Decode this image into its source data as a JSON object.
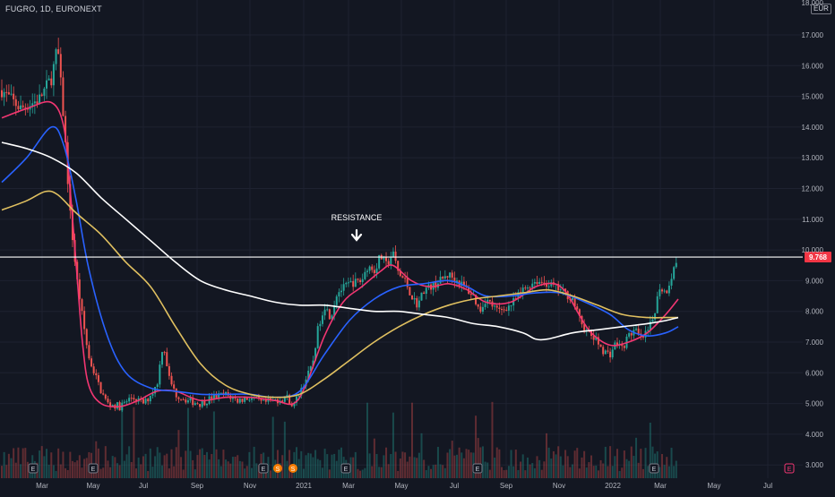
{
  "header": {
    "symbol": "FUGRO, 1D, EURONEXT",
    "currency": "EUR"
  },
  "annotation": {
    "label": "RESISTANCE"
  },
  "colors": {
    "background": "#131722",
    "grid": "#1e2230",
    "axis_text": "#b2b5be",
    "resistance_line": "#ffffff",
    "price_badge": "#f23645",
    "candle_up": "#26a69a",
    "candle_down": "#ef5350",
    "ma_red": "#f23672",
    "ma_blue": "#2962ff",
    "ma_yellow": "#e0c060",
    "ma_white": "#ffffff"
  },
  "chart_data": {
    "type": "candlestick",
    "title": "FUGRO, 1D, EURONEXT",
    "ylim": [
      2.8,
      18.0
    ],
    "y_ticks": [
      "17.000",
      "16.000",
      "15.000",
      "14.000",
      "13.000",
      "12.000",
      "11.000",
      "10.000",
      "9.000",
      "8.000",
      "7.000",
      "6.000",
      "5.000",
      "4.000",
      "3.000"
    ],
    "x_labels": [
      "Mar",
      "May",
      "Jul",
      "Sep",
      "Nov",
      "2021",
      "Mar",
      "May",
      "Jul",
      "Sep",
      "Nov",
      "2022",
      "Mar",
      "May",
      "Jul"
    ],
    "last_price": "9.768",
    "resistance_level": 9.768,
    "price_path": [
      [
        0,
        15.2
      ],
      [
        3,
        14.6
      ],
      [
        6,
        14.9
      ],
      [
        8,
        15.6
      ],
      [
        9,
        16.6
      ],
      [
        10,
        14.2
      ],
      [
        11,
        11.2
      ],
      [
        12,
        9.2
      ],
      [
        13,
        7.8
      ],
      [
        14,
        6.5
      ],
      [
        16,
        5.4
      ],
      [
        17,
        5.0
      ],
      [
        19,
        4.9
      ],
      [
        21,
        5.2
      ],
      [
        23,
        5.0
      ],
      [
        25,
        5.6
      ],
      [
        26,
        7.0
      ],
      [
        27,
        5.8
      ],
      [
        28,
        5.3
      ],
      [
        30,
        5.1
      ],
      [
        32,
        5.0
      ],
      [
        34,
        5.2
      ],
      [
        36,
        5.3
      ],
      [
        38,
        5.1
      ],
      [
        40,
        5.2
      ],
      [
        42,
        5.0
      ],
      [
        44,
        5.1
      ],
      [
        46,
        5.2
      ],
      [
        47,
        4.9
      ],
      [
        48,
        5.4
      ],
      [
        50,
        6.2
      ],
      [
        51,
        7.5
      ],
      [
        52,
        8.2
      ],
      [
        53,
        7.8
      ],
      [
        54,
        8.6
      ],
      [
        56,
        8.9
      ],
      [
        58,
        9.0
      ],
      [
        59,
        9.5
      ],
      [
        60,
        9.3
      ],
      [
        61,
        9.8
      ],
      [
        62,
        9.5
      ],
      [
        63,
        9.9
      ],
      [
        64,
        9.2
      ],
      [
        65,
        9.0
      ],
      [
        66,
        8.5
      ],
      [
        67,
        8.2
      ],
      [
        68,
        8.7
      ],
      [
        70,
        8.9
      ],
      [
        72,
        9.2
      ],
      [
        74,
        8.9
      ],
      [
        76,
        8.5
      ],
      [
        77,
        8.0
      ],
      [
        78,
        8.4
      ],
      [
        80,
        8.0
      ],
      [
        82,
        8.2
      ],
      [
        84,
        8.7
      ],
      [
        86,
        9.0
      ],
      [
        88,
        8.9
      ],
      [
        90,
        8.7
      ],
      [
        92,
        8.4
      ],
      [
        93,
        7.8
      ],
      [
        94,
        7.4
      ],
      [
        95,
        7.2
      ],
      [
        96,
        7.0
      ],
      [
        97,
        6.7
      ],
      [
        98,
        6.6
      ],
      [
        99,
        7.0
      ],
      [
        100,
        6.8
      ],
      [
        101,
        7.2
      ],
      [
        102,
        7.4
      ],
      [
        103,
        7.1
      ],
      [
        104,
        7.3
      ],
      [
        105,
        7.8
      ],
      [
        106,
        8.8
      ],
      [
        107,
        8.6
      ],
      [
        108,
        9.2
      ],
      [
        109,
        9.8
      ]
    ],
    "series": [
      {
        "name": "",
        "color": "#f23672",
        "points": [
          [
            0,
            14.3
          ],
          [
            4,
            14.6
          ],
          [
            8,
            14.8
          ],
          [
            10,
            14.0
          ],
          [
            11,
            12.0
          ],
          [
            12,
            9.5
          ],
          [
            13,
            7.0
          ],
          [
            14,
            5.6
          ],
          [
            16,
            5.0
          ],
          [
            19,
            4.9
          ],
          [
            22,
            5.1
          ],
          [
            25,
            5.4
          ],
          [
            28,
            5.4
          ],
          [
            32,
            5.1
          ],
          [
            36,
            5.2
          ],
          [
            40,
            5.2
          ],
          [
            44,
            5.1
          ],
          [
            47,
            5.0
          ],
          [
            49,
            5.6
          ],
          [
            52,
            7.2
          ],
          [
            55,
            8.3
          ],
          [
            58,
            8.8
          ],
          [
            61,
            9.3
          ],
          [
            63,
            9.5
          ],
          [
            66,
            9.0
          ],
          [
            69,
            8.8
          ],
          [
            72,
            8.9
          ],
          [
            75,
            8.7
          ],
          [
            78,
            8.3
          ],
          [
            82,
            8.3
          ],
          [
            86,
            8.8
          ],
          [
            89,
            8.9
          ],
          [
            91,
            8.6
          ],
          [
            93,
            7.9
          ],
          [
            95,
            7.3
          ],
          [
            98,
            6.9
          ],
          [
            101,
            7.0
          ],
          [
            104,
            7.3
          ],
          [
            107,
            7.9
          ],
          [
            109,
            8.4
          ]
        ]
      },
      {
        "name": "",
        "color": "#2962ff",
        "points": [
          [
            0,
            12.2
          ],
          [
            4,
            13.0
          ],
          [
            8,
            14.0
          ],
          [
            10,
            13.4
          ],
          [
            12,
            11.6
          ],
          [
            14,
            9.4
          ],
          [
            17,
            7.2
          ],
          [
            20,
            6.0
          ],
          [
            24,
            5.5
          ],
          [
            28,
            5.4
          ],
          [
            32,
            5.3
          ],
          [
            36,
            5.3
          ],
          [
            40,
            5.3
          ],
          [
            44,
            5.2
          ],
          [
            48,
            5.4
          ],
          [
            52,
            6.6
          ],
          [
            56,
            7.7
          ],
          [
            60,
            8.4
          ],
          [
            64,
            8.8
          ],
          [
            68,
            8.9
          ],
          [
            72,
            9.0
          ],
          [
            75,
            8.8
          ],
          [
            78,
            8.5
          ],
          [
            82,
            8.5
          ],
          [
            86,
            8.6
          ],
          [
            90,
            8.6
          ],
          [
            94,
            8.3
          ],
          [
            98,
            7.9
          ],
          [
            101,
            7.4
          ],
          [
            104,
            7.2
          ],
          [
            107,
            7.3
          ],
          [
            109,
            7.5
          ]
        ]
      },
      {
        "name": "",
        "color": "#e0c060",
        "points": [
          [
            0,
            11.3
          ],
          [
            4,
            11.6
          ],
          [
            7,
            11.9
          ],
          [
            9,
            11.8
          ],
          [
            12,
            11.2
          ],
          [
            16,
            10.5
          ],
          [
            20,
            9.6
          ],
          [
            24,
            8.8
          ],
          [
            28,
            7.5
          ],
          [
            32,
            6.3
          ],
          [
            36,
            5.6
          ],
          [
            40,
            5.3
          ],
          [
            44,
            5.2
          ],
          [
            48,
            5.3
          ],
          [
            52,
            5.8
          ],
          [
            56,
            6.4
          ],
          [
            60,
            7.0
          ],
          [
            64,
            7.5
          ],
          [
            68,
            7.9
          ],
          [
            72,
            8.2
          ],
          [
            76,
            8.4
          ],
          [
            80,
            8.5
          ],
          [
            84,
            8.6
          ],
          [
            88,
            8.7
          ],
          [
            92,
            8.5
          ],
          [
            96,
            8.2
          ],
          [
            100,
            7.9
          ],
          [
            104,
            7.8
          ],
          [
            107,
            7.8
          ],
          [
            109,
            7.8
          ]
        ]
      },
      {
        "name": "",
        "color": "#ffffff",
        "points": [
          [
            0,
            13.5
          ],
          [
            4,
            13.3
          ],
          [
            8,
            13.0
          ],
          [
            12,
            12.5
          ],
          [
            16,
            11.7
          ],
          [
            20,
            11.0
          ],
          [
            24,
            10.3
          ],
          [
            28,
            9.6
          ],
          [
            32,
            9.0
          ],
          [
            36,
            8.7
          ],
          [
            40,
            8.5
          ],
          [
            44,
            8.3
          ],
          [
            48,
            8.2
          ],
          [
            52,
            8.2
          ],
          [
            56,
            8.1
          ],
          [
            60,
            8.0
          ],
          [
            64,
            8.0
          ],
          [
            68,
            7.9
          ],
          [
            72,
            7.8
          ],
          [
            76,
            7.6
          ],
          [
            80,
            7.5
          ],
          [
            84,
            7.3
          ],
          [
            86,
            7.1
          ],
          [
            88,
            7.1
          ],
          [
            92,
            7.3
          ],
          [
            96,
            7.4
          ],
          [
            100,
            7.5
          ],
          [
            104,
            7.6
          ],
          [
            107,
            7.7
          ],
          [
            109,
            7.8
          ]
        ]
      }
    ]
  }
}
